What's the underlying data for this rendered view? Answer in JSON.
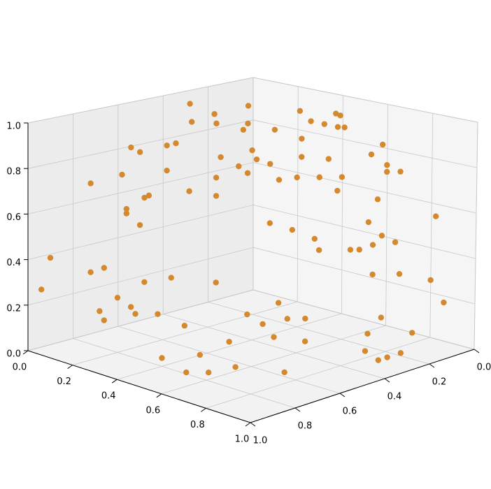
{
  "chart_data": {
    "type": "scatter3d",
    "color": "#d4892f",
    "grid": true,
    "xlim": [
      0,
      1
    ],
    "ylim": [
      0,
      1
    ],
    "zlim": [
      0,
      1
    ],
    "xticks": [
      {
        "value": 0,
        "label": "0.0"
      },
      0.2,
      0.4,
      0.6,
      0.8,
      {
        "value": 1,
        "label": "1.0"
      }
    ],
    "yticks": [
      {
        "value": 0,
        "label": "0.0"
      },
      0.2,
      0.4,
      0.6,
      0.8,
      {
        "value": 1,
        "label": "1.0"
      }
    ],
    "zticks": [
      {
        "value": 0,
        "label": "0.0"
      },
      0.2,
      0.4,
      0.6,
      0.8,
      {
        "value": 1,
        "label": "1.0"
      }
    ],
    "x": [
      0.12,
      0.28,
      0.27,
      0.31,
      0.38,
      0.45,
      0.48,
      0.23,
      0.25,
      0.31,
      0.33,
      0.43,
      0.5,
      0.51,
      0.47,
      0.49,
      0.31,
      0.21,
      0.14,
      0.42,
      0.36,
      0.27,
      0.26,
      0.42,
      0.22,
      0.22,
      0.25,
      0.05,
      0.17,
      0.14,
      0.32,
      0.26,
      0.42,
      0.03,
      0.2,
      0.23,
      0.16,
      0.24,
      0.29,
      0.17,
      0.35,
      0.44,
      0.57,
      0.55,
      0.58,
      0.63,
      0.69,
      0.71,
      0.55,
      0.61,
      0.79,
      0.77,
      0.61,
      0.67,
      0.54,
      0.8,
      0.8,
      0.83,
      0.6,
      0.65,
      0.56,
      0.7,
      0.69,
      0.78,
      0.91,
      0.54,
      0.59,
      0.76,
      0.64,
      0.79,
      0.82,
      0.65,
      0.72,
      0.74,
      0.77,
      0.77,
      0.83,
      0.9,
      0.93,
      0.56,
      0.49,
      0.53,
      0.58,
      0.62,
      0.79,
      0.55,
      0.62,
      0.45,
      0.76,
      0.86,
      0.45,
      0.8,
      0.39,
      0.9,
      0.62,
      0.9,
      0.9,
      0.55,
      0.6,
      0.77
    ],
    "y": [
      0.4,
      0.45,
      0.29,
      0.58,
      0.54,
      0.47,
      0.52,
      0.77,
      0.75,
      0.69,
      0.67,
      0.57,
      0.5,
      0.49,
      0.53,
      0.51,
      0.69,
      0.79,
      0.86,
      0.58,
      0.64,
      0.73,
      0.74,
      0.58,
      0.78,
      0.78,
      0.75,
      0.95,
      0.83,
      0.86,
      0.68,
      0.74,
      0.58,
      0.97,
      0.8,
      0.77,
      0.84,
      0.76,
      0.71,
      0.83,
      0.65,
      0.23,
      0.31,
      0.18,
      0.19,
      0.31,
      0.31,
      0.3,
      0.45,
      0.39,
      0.21,
      0.24,
      0.39,
      0.33,
      0.46,
      0.2,
      0.2,
      0.17,
      0.4,
      0.35,
      0.44,
      0.3,
      0.31,
      0.22,
      0.09,
      0.46,
      0.41,
      0.24,
      0.36,
      0.21,
      0.18,
      0.35,
      0.28,
      0.26,
      0.23,
      0.23,
      0.17,
      0.1,
      0.07,
      0.44,
      0.51,
      0.48,
      0.42,
      0.38,
      0.21,
      0.45,
      0.38,
      0.55,
      0.24,
      0.14,
      0.68,
      0.29,
      0.79,
      0.23,
      0.69,
      0.29,
      0.33,
      0.84,
      0.79,
      0.62
    ],
    "z": [
      0.99,
      0.99,
      0.99,
      0.99,
      0.99,
      0.99,
      0.98,
      0.9,
      0.88,
      0.91,
      0.92,
      0.86,
      0.89,
      0.85,
      0.82,
      0.79,
      0.8,
      0.78,
      0.74,
      0.77,
      0.71,
      0.69,
      0.68,
      0.69,
      0.63,
      0.61,
      0.56,
      0.41,
      0.37,
      0.35,
      0.33,
      0.31,
      0.31,
      0.27,
      0.24,
      0.2,
      0.18,
      0.17,
      0.17,
      0.14,
      0.12,
      0.99,
      0.99,
      0.99,
      0.99,
      0.99,
      0.99,
      0.99,
      0.98,
      0.94,
      0.91,
      0.87,
      0.86,
      0.85,
      0.83,
      0.82,
      0.79,
      0.79,
      0.77,
      0.77,
      0.76,
      0.77,
      0.71,
      0.67,
      0.59,
      0.57,
      0.54,
      0.57,
      0.5,
      0.51,
      0.48,
      0.45,
      0.45,
      0.45,
      0.47,
      0.34,
      0.34,
      0.31,
      0.21,
      0.22,
      0.17,
      0.13,
      0.15,
      0.15,
      0.15,
      0.07,
      0.05,
      0.05,
      0.08,
      0.08,
      0.03,
      0.03,
      0.03,
      0.03,
      0.03,
      0.03,
      0.03,
      0.03,
      0.03,
      0.03
    ]
  }
}
